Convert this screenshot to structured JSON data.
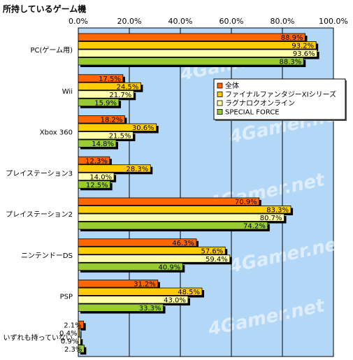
{
  "chart_data": {
    "type": "bar",
    "orientation": "horizontal",
    "title": "所持しているゲーム機",
    "xlim": [
      0,
      100
    ],
    "x_ticks": [
      "0.0%",
      "20.0%",
      "40.0%",
      "60.0%",
      "80.0%",
      "100.0%"
    ],
    "grid": true,
    "legend_position": "top-right",
    "watermark": "4Gamer.net",
    "categories": [
      "PC(ゲーム用)",
      "Wii",
      "Xbox 360",
      "プレイステーション3",
      "プレイステーション2",
      "ニンテンドーDS",
      "PSP",
      "いずれも持っていない"
    ],
    "series": [
      {
        "name": "全体",
        "color": "#ff6600",
        "values": [
          88.9,
          17.5,
          18.2,
          12.3,
          70.9,
          46.3,
          31.2,
          2.1
        ]
      },
      {
        "name": "ファイナルファンタジーXIシリーズ",
        "color": "#ffcc00",
        "values": [
          93.2,
          24.5,
          30.6,
          28.3,
          83.3,
          57.6,
          48.5,
          0.4
        ]
      },
      {
        "name": "ラグナロクオンライン",
        "color": "#ffffaa",
        "values": [
          93.6,
          21.7,
          21.5,
          14.0,
          80.7,
          59.4,
          43.0,
          0.9
        ]
      },
      {
        "name": "SPECIAL FORCE",
        "color": "#99cc33",
        "values": [
          88.3,
          15.9,
          14.8,
          12.5,
          74.2,
          40.9,
          33.3,
          2.3
        ]
      }
    ],
    "plot_background": "#b3d7f7"
  }
}
